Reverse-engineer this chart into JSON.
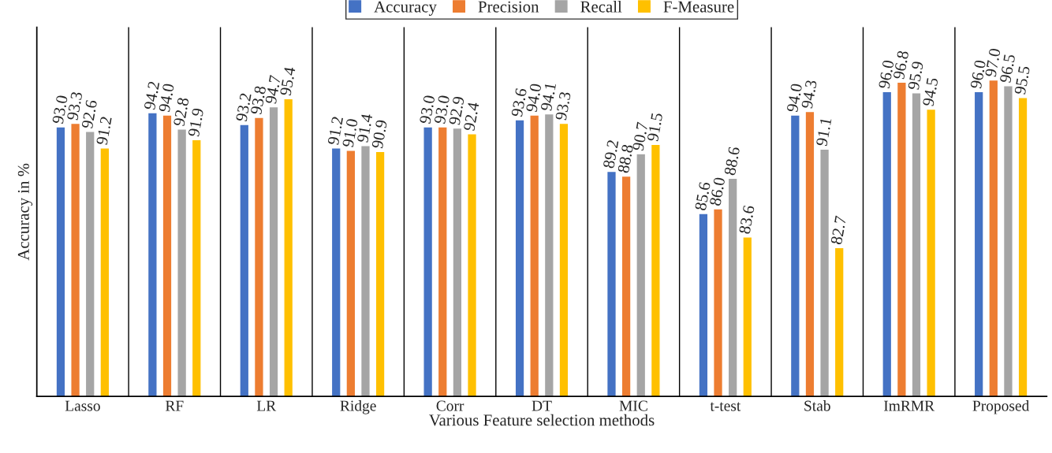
{
  "chart_data": {
    "type": "bar",
    "xlabel": "Various Feature selection methods",
    "ylabel": "Accuracy in %",
    "categories": [
      "Lasso",
      "RF",
      "LR",
      "Ridge",
      "Corr",
      "DT",
      "MIC",
      "t-test",
      "Stab",
      "ImRMR",
      "Proposed"
    ],
    "series": [
      {
        "name": "Accuracy",
        "color": "#4472c4",
        "values": [
          93.0,
          94.2,
          93.2,
          91.2,
          93.0,
          93.6,
          89.2,
          85.6,
          94.0,
          96.0,
          96.0
        ],
        "value_labels": [
          "93.0",
          "94.2",
          "93.2",
          "91.2",
          "93.0",
          "93.6",
          "89.2",
          "85.6",
          "94.0",
          "96.0",
          "96.0"
        ]
      },
      {
        "name": "Precision",
        "color": "#ed7d31",
        "values": [
          93.3,
          94.0,
          93.8,
          91.0,
          93.0,
          94.0,
          88.8,
          86.0,
          94.3,
          96.8,
          97.0
        ],
        "value_labels": [
          "93.3",
          "94.0",
          "93.8",
          "91.0",
          "93.0",
          "94.0",
          "88.8",
          "86.0",
          "94.3",
          "96.8",
          "97.0"
        ]
      },
      {
        "name": "Recall",
        "color": "#a5a5a5",
        "values": [
          92.6,
          92.8,
          94.7,
          91.4,
          92.9,
          94.1,
          90.7,
          88.6,
          91.1,
          95.9,
          96.5
        ],
        "value_labels": [
          "92.6",
          "92.8",
          "94.7",
          "91.4",
          "92.9",
          "94.1",
          "90.7",
          "88.6",
          "91.1",
          "95.9",
          "96.5"
        ]
      },
      {
        "name": "F-Measure",
        "color": "#ffc000",
        "values": [
          91.2,
          91.9,
          95.4,
          90.9,
          92.4,
          93.3,
          91.5,
          83.6,
          82.7,
          94.5,
          95.5
        ],
        "value_labels": [
          "91.2",
          "91.9",
          "95.4",
          "90.9",
          "92.4",
          "93.3",
          "91.5",
          "83.6",
          "82.7",
          "94.5",
          "95.5"
        ]
      }
    ],
    "ylim": [
      70,
      101.5
    ],
    "grid": "x",
    "legend": "top"
  }
}
